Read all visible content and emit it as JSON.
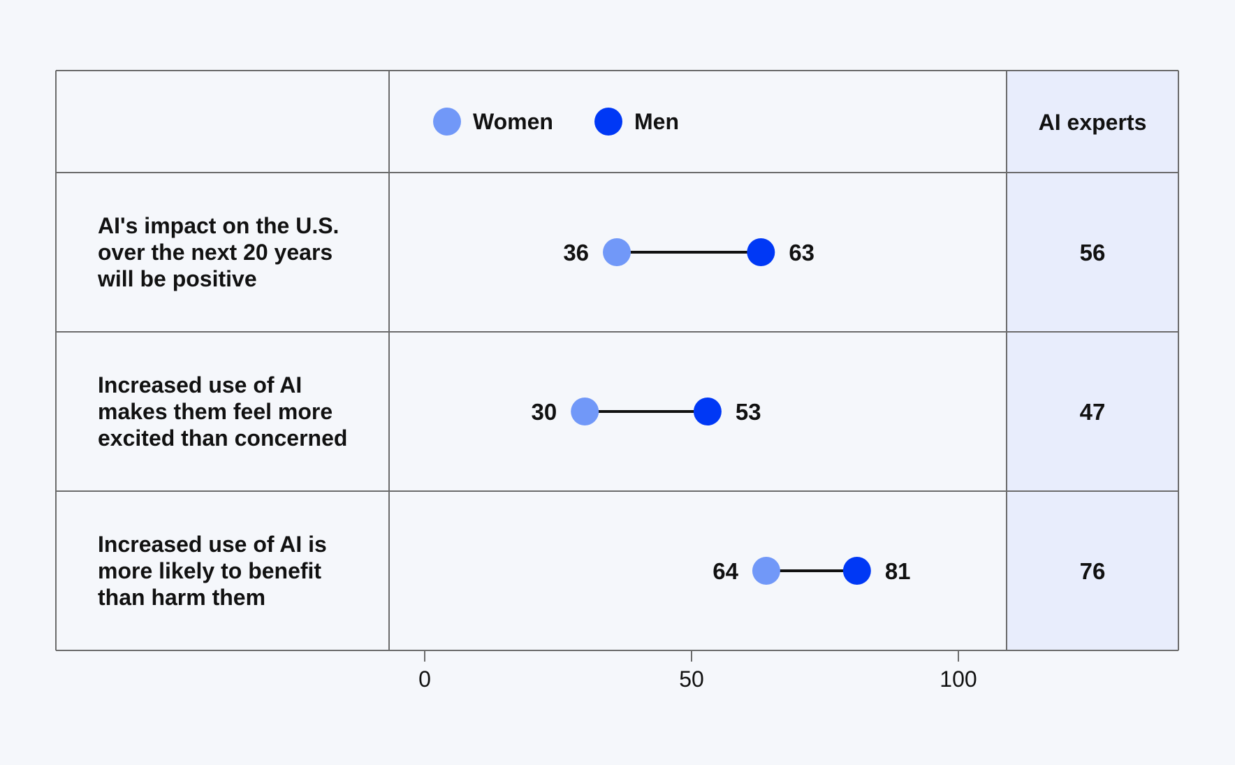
{
  "chart_data": {
    "type": "dumbbell",
    "categories": [
      [
        "AI's impact on the U.S.",
        "over the next 20 years",
        "will be positive"
      ],
      [
        "Increased use of AI",
        "makes them feel more",
        "excited than concerned"
      ],
      [
        "Increased use of AI is",
        "more likely to benefit",
        "than harm them"
      ]
    ],
    "series": [
      {
        "name": "Women",
        "color": "#7198f8",
        "values": [
          36,
          30,
          64
        ]
      },
      {
        "name": "Men",
        "color": "#0038f5",
        "values": [
          63,
          53,
          81
        ]
      }
    ],
    "extra_column": {
      "header": "AI experts",
      "values": [
        "56",
        "47",
        "76"
      ],
      "background": "#e8edfc"
    },
    "x_ticks": [
      0,
      50,
      100
    ],
    "xlim": [
      0,
      100
    ],
    "legend_position": "top",
    "grid": false,
    "colors": {
      "background": "#f5f7fb",
      "border": "#6b6b6b",
      "connector": "#111111"
    }
  }
}
